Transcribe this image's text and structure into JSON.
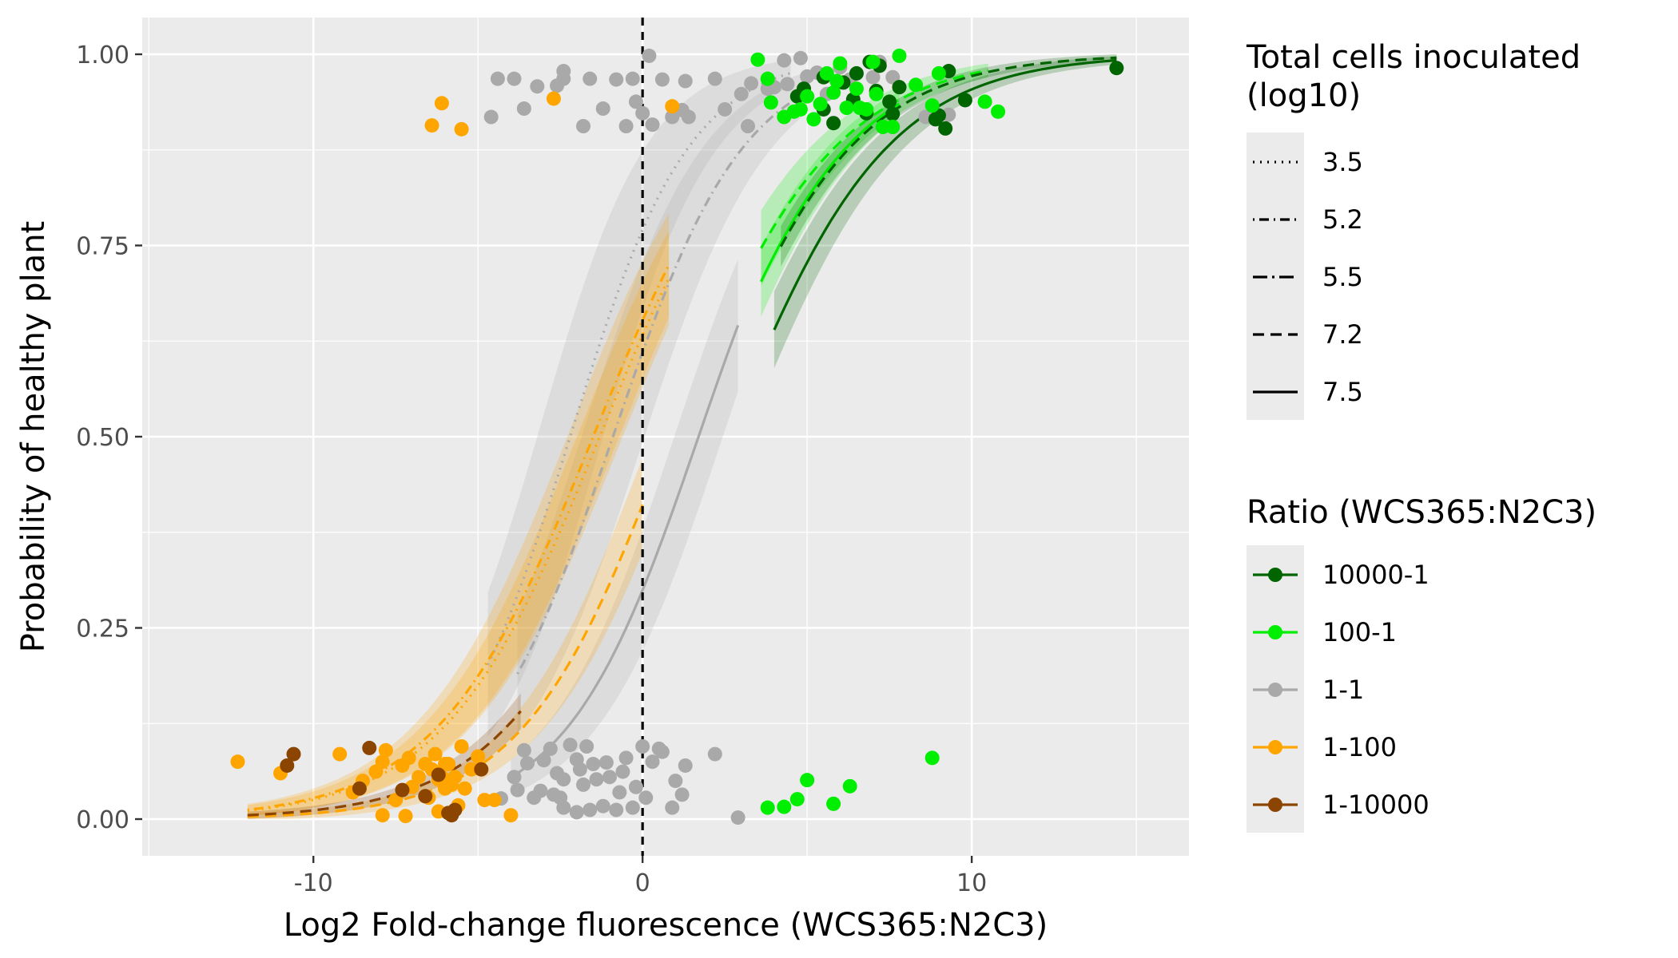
{
  "chart_data": {
    "type": "scatter",
    "title": "",
    "xlabel": "Log2 Fold-change fluorescence (WCS365:N2C3)",
    "ylabel": "Probability of healthy plant",
    "xlim": [
      -15.2,
      16.6
    ],
    "ylim": [
      -0.048,
      1.048
    ],
    "x_ticks": [
      -10,
      0,
      10
    ],
    "x_tick_labels": [
      "-10",
      "0",
      "10"
    ],
    "y_ticks": [
      0,
      0.25,
      0.5,
      0.75,
      1
    ],
    "y_tick_labels": [
      "0.00",
      "0.25",
      "0.50",
      "0.75",
      "1.00"
    ],
    "x_minor_ticks": [
      -15,
      -5,
      5,
      15
    ],
    "y_minor_ticks": [
      0.125,
      0.375,
      0.625,
      0.875
    ],
    "grid": true,
    "reference_line": {
      "x": 0,
      "style": "dashed"
    },
    "legends": {
      "position": "right",
      "linetype": {
        "title_lines": [
          "Total cells inoculated",
          "(log10)"
        ],
        "entries": [
          {
            "label": "3.5",
            "dash": "dotted"
          },
          {
            "label": "5.2",
            "dash": "dotdash"
          },
          {
            "label": "5.5",
            "dash": "longdash-dot"
          },
          {
            "label": "7.2",
            "dash": "dashed"
          },
          {
            "label": "7.5",
            "dash": "solid"
          }
        ]
      },
      "color": {
        "title": "Ratio (WCS365:N2C3)",
        "entries": [
          {
            "label": "10000-1",
            "color": "#006400"
          },
          {
            "label": "100-1",
            "color": "#00ee00"
          },
          {
            "label": "1-1",
            "color": "#a9a9a9"
          },
          {
            "label": "1-100",
            "color": "#ffa500"
          },
          {
            "label": "1-10000",
            "color": "#8b4500"
          }
        ]
      }
    },
    "curves": [
      {
        "ratio": "1-1",
        "cells": "3.5",
        "color": "#a9a9a9",
        "dash": "dotted",
        "k": 0.55,
        "x0": -2.2,
        "xrange": [
          -4.7,
          4.5
        ],
        "band": 0.14
      },
      {
        "ratio": "1-1",
        "cells": "5.2",
        "color": "#a9a9a9",
        "dash": "dotdash",
        "k": 0.5,
        "x0": -0.9,
        "xrange": [
          -3.8,
          5
        ],
        "band": 0.12
      },
      {
        "ratio": "1-1",
        "cells": "7.5",
        "color": "#a9a9a9",
        "dash": "solid",
        "k": 0.5,
        "x0": 1.7,
        "xrange": [
          -4,
          2.9
        ],
        "band": 0.09
      },
      {
        "ratio": "1-100",
        "cells": "3.5",
        "color": "#ffa500",
        "dash": "dotted",
        "k": 0.42,
        "x0": -1.3,
        "xrange": [
          -12,
          0.8
        ],
        "band": 0.07
      },
      {
        "ratio": "1-100",
        "cells": "5.2",
        "color": "#ffa500",
        "dash": "dotdash",
        "k": 0.42,
        "x0": -1.5,
        "xrange": [
          -12,
          0.8
        ],
        "band": 0.08
      },
      {
        "ratio": "1-100",
        "cells": "7.2",
        "color": "#ffa500",
        "dash": "dashed",
        "k": 0.45,
        "x0": 0.8,
        "xrange": [
          -12,
          0
        ],
        "band": 0.06
      },
      {
        "ratio": "1-10000",
        "cells": "7.2",
        "color": "#8b4500",
        "dash": "dashed",
        "k": 0.42,
        "x0": 0.6,
        "xrange": [
          -12,
          -3.7
        ],
        "band": 0.04
      },
      {
        "ratio": "100-1",
        "cells": "7.2",
        "color": "#00ee00",
        "dash": "dashed",
        "k": 0.4,
        "x0": 0.9,
        "xrange": [
          3.6,
          10.5
        ],
        "band": 0.06
      },
      {
        "ratio": "100-1",
        "cells": "7.5",
        "color": "#00ee00",
        "dash": "solid",
        "k": 0.43,
        "x0": 1.6,
        "xrange": [
          3.6,
          7.8
        ],
        "band": 0.05
      },
      {
        "ratio": "10000-1",
        "cells": "7.5",
        "color": "#006400",
        "dash": "solid",
        "k": 0.41,
        "x0": 2.6,
        "xrange": [
          4,
          14.4
        ],
        "band": 0.05
      },
      {
        "ratio": "10000-1",
        "cells": "7.2",
        "color": "#006400",
        "dash": "dashed",
        "k": 0.42,
        "x0": 1.6,
        "xrange": [
          4.2,
          14.4
        ],
        "band": 0.03
      }
    ],
    "series": [
      {
        "ratio": "1-1",
        "color": "#a9a9a9",
        "points": [
          [
            -4.6,
            0.918
          ],
          [
            -4.4,
            0.968
          ],
          [
            -3.9,
            0.968
          ],
          [
            -3.6,
            0.929
          ],
          [
            -3.2,
            0.958
          ],
          [
            -2.6,
            0.959
          ],
          [
            -2.4,
            0.968
          ],
          [
            -2.4,
            0.978
          ],
          [
            -1.8,
            0.906
          ],
          [
            -1.6,
            0.968
          ],
          [
            -1.2,
            0.929
          ],
          [
            -0.8,
            0.967
          ],
          [
            -0.5,
            0.906
          ],
          [
            -0.3,
            0.968
          ],
          [
            -0.2,
            0.938
          ],
          [
            0,
            0.923
          ],
          [
            0.2,
            0.998
          ],
          [
            0.3,
            0.908
          ],
          [
            0.6,
            0.967
          ],
          [
            0.9,
            0.918
          ],
          [
            1.2,
            0.927
          ],
          [
            1.3,
            0.965
          ],
          [
            1.4,
            0.918
          ],
          [
            2.2,
            0.968
          ],
          [
            2.5,
            0.928
          ],
          [
            3,
            0.948
          ],
          [
            3.2,
            0.906
          ],
          [
            3.3,
            0.962
          ],
          [
            3.8,
            0.955
          ],
          [
            4,
            0.957
          ],
          [
            4.3,
            0.992
          ],
          [
            4.4,
            0.961
          ],
          [
            4.8,
            0.995
          ],
          [
            5,
            0.971
          ],
          [
            5.3,
            0.976
          ],
          [
            5.6,
            0.948
          ],
          [
            6,
            0.983
          ],
          [
            6.3,
            0.967
          ],
          [
            7,
            0.97
          ],
          [
            7.2,
            0.99
          ],
          [
            7.6,
            0.97
          ],
          [
            8.6,
            0.918
          ],
          [
            9.3,
            0.921
          ],
          [
            -4.3,
            0.027
          ],
          [
            -3.9,
            0.055
          ],
          [
            -3.6,
            0.09
          ],
          [
            -3.5,
            0.073
          ],
          [
            -3.3,
            0.028
          ],
          [
            -3.1,
            0.037
          ],
          [
            -3,
            0.077
          ],
          [
            -2.8,
            0.092
          ],
          [
            -2.6,
            0.06
          ],
          [
            -2.5,
            0.028
          ],
          [
            -2.4,
            0.052
          ],
          [
            -2.2,
            0.097
          ],
          [
            -2,
            0.078
          ],
          [
            -1.9,
            0.065
          ],
          [
            -1.7,
            0.095
          ],
          [
            -1.5,
            0.072
          ],
          [
            -1.4,
            0.052
          ],
          [
            -1.2,
            0.017
          ],
          [
            -1.1,
            0.074
          ],
          [
            -1,
            0.055
          ],
          [
            -0.8,
            0.012
          ],
          [
            -0.7,
            0.035
          ],
          [
            -0.6,
            0.062
          ],
          [
            -0.5,
            0.08
          ],
          [
            -0.3,
            0.015
          ],
          [
            -0.2,
            0.042
          ],
          [
            0,
            0.095
          ],
          [
            0.1,
            0.028
          ],
          [
            0.3,
            0.075
          ],
          [
            0.5,
            0.092
          ],
          [
            0.6,
            0.088
          ],
          [
            0.9,
            0.015
          ],
          [
            1,
            0.05
          ],
          [
            1.2,
            0.032
          ],
          [
            1.3,
            0.07
          ],
          [
            2.2,
            0.085
          ],
          [
            2.9,
            0.002
          ],
          [
            -2,
            0.009
          ],
          [
            -1.6,
            0.012
          ],
          [
            -2.4,
            0.015
          ],
          [
            -1.8,
            0.045
          ],
          [
            -2.7,
            0.032
          ],
          [
            -3.8,
            0.038
          ]
        ]
      },
      {
        "ratio": "10000-1",
        "color": "#006400",
        "points": [
          [
            14.4,
            0.982
          ],
          [
            9.8,
            0.94
          ],
          [
            9.3,
            0.978
          ],
          [
            9.2,
            0.903
          ],
          [
            9,
            0.92
          ],
          [
            8.9,
            0.915
          ],
          [
            7.8,
            0.957
          ],
          [
            7.6,
            0.922
          ],
          [
            7.5,
            0.938
          ],
          [
            7.1,
            0.952
          ],
          [
            6.8,
            0.923
          ],
          [
            6.5,
            0.975
          ],
          [
            6.4,
            0.941
          ],
          [
            6.1,
            0.963
          ],
          [
            5.8,
            0.91
          ],
          [
            5.5,
            0.97
          ],
          [
            5.5,
            0.928
          ],
          [
            4.9,
            0.955
          ],
          [
            4.7,
            0.945
          ],
          [
            7.2,
            0.985
          ],
          [
            6.9,
            0.99
          ]
        ]
      },
      {
        "ratio": "100-1",
        "color": "#00ee00",
        "points": [
          [
            3.5,
            0.993
          ],
          [
            3.8,
            0.968
          ],
          [
            3.9,
            0.937
          ],
          [
            4.3,
            0.918
          ],
          [
            4.6,
            0.925
          ],
          [
            4.8,
            0.928
          ],
          [
            5,
            0.945
          ],
          [
            5.2,
            0.915
          ],
          [
            5.4,
            0.935
          ],
          [
            5.6,
            0.975
          ],
          [
            5.9,
            0.965
          ],
          [
            6,
            0.988
          ],
          [
            6.2,
            0.93
          ],
          [
            6.5,
            0.955
          ],
          [
            6.8,
            0.928
          ],
          [
            7.1,
            0.948
          ],
          [
            7.3,
            0.905
          ],
          [
            7.6,
            0.905
          ],
          [
            7.8,
            0.998
          ],
          [
            8.3,
            0.96
          ],
          [
            8.8,
            0.933
          ],
          [
            9,
            0.975
          ],
          [
            10.4,
            0.938
          ],
          [
            10.8,
            0.925
          ],
          [
            7,
            0.99
          ],
          [
            5.8,
            0.95
          ],
          [
            6.6,
            0.93
          ],
          [
            3.8,
            0.015
          ],
          [
            4.3,
            0.016
          ],
          [
            4.7,
            0.026
          ],
          [
            5,
            0.051
          ],
          [
            5.8,
            0.02
          ],
          [
            6.3,
            0.043
          ],
          [
            8.8,
            0.08
          ]
        ]
      },
      {
        "ratio": "1-100",
        "color": "#ffa500",
        "points": [
          [
            -6.4,
            0.907
          ],
          [
            -6.1,
            0.936
          ],
          [
            -5.5,
            0.902
          ],
          [
            -2.7,
            0.942
          ],
          [
            0.9,
            0.932
          ],
          [
            -12.3,
            0.075
          ],
          [
            -11,
            0.06
          ],
          [
            -9.2,
            0.085
          ],
          [
            -8.8,
            0.035
          ],
          [
            -8.5,
            0.05
          ],
          [
            -8.1,
            0.062
          ],
          [
            -7.9,
            0.075
          ],
          [
            -7.8,
            0.09
          ],
          [
            -7.5,
            0.025
          ],
          [
            -7.3,
            0.07
          ],
          [
            -7.1,
            0.08
          ],
          [
            -7,
            0.042
          ],
          [
            -6.8,
            0.055
          ],
          [
            -6.6,
            0.03
          ],
          [
            -6.4,
            0.065
          ],
          [
            -6.3,
            0.085
          ],
          [
            -6.2,
            0.01
          ],
          [
            -6,
            0.04
          ],
          [
            -5.9,
            0.072
          ],
          [
            -5.7,
            0.055
          ],
          [
            -5.6,
            0.018
          ],
          [
            -5.5,
            0.095
          ],
          [
            -5.4,
            0.04
          ],
          [
            -5.2,
            0.065
          ],
          [
            -5,
            0.082
          ],
          [
            -4.8,
            0.025
          ],
          [
            -4.5,
            0.025
          ],
          [
            -4,
            0.005
          ],
          [
            -7.9,
            0.005
          ],
          [
            -7.2,
            0.004
          ],
          [
            -6.5,
            0.028
          ],
          [
            -6,
            0.072
          ],
          [
            -5.8,
            0.045
          ],
          [
            -6.1,
            0.055
          ],
          [
            -6.6,
            0.072
          ],
          [
            -6.2,
            0.052
          ],
          [
            -5.7,
            0.012
          ]
        ]
      },
      {
        "ratio": "1-10000",
        "color": "#8b4500",
        "points": [
          [
            -10.6,
            0.085
          ],
          [
            -10.8,
            0.07
          ],
          [
            -8.3,
            0.093
          ],
          [
            -7.3,
            0.038
          ],
          [
            -6.6,
            0.03
          ],
          [
            -6.2,
            0.058
          ],
          [
            -5.9,
            0.008
          ],
          [
            -5.8,
            0.005
          ],
          [
            -5.7,
            0.012
          ],
          [
            -4.9,
            0.065
          ],
          [
            -8.6,
            0.04
          ]
        ]
      }
    ]
  }
}
